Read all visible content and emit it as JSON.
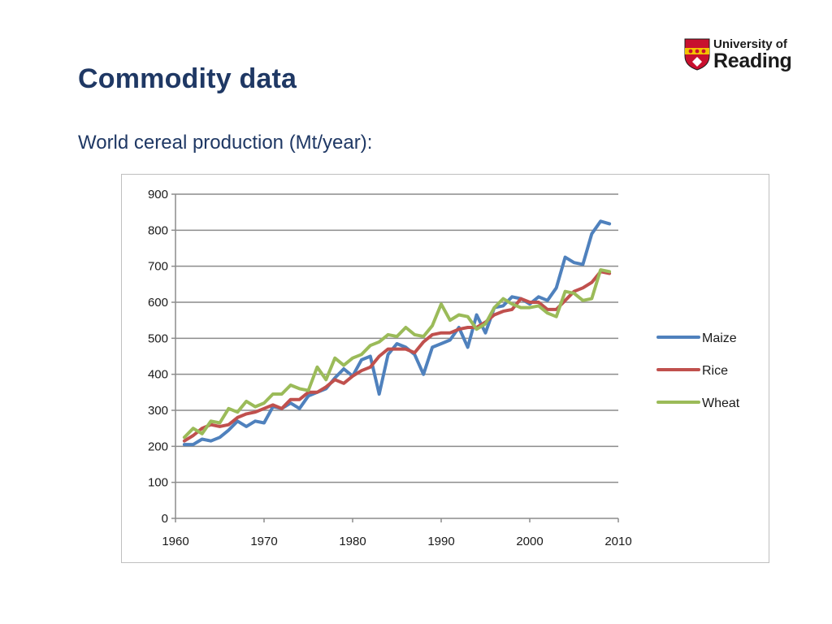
{
  "slide": {
    "title": "Commodity data",
    "subtitle": "World cereal production (Mt/year):"
  },
  "logo": {
    "line1": "University of",
    "line2": "Reading",
    "shield_colors": {
      "red": "#c8102e",
      "gold": "#f2c200",
      "white": "#ffffff"
    }
  },
  "chart_data": {
    "type": "line",
    "title": "",
    "xlabel": "",
    "ylabel": "",
    "xlim": [
      1960,
      2010
    ],
    "ylim": [
      0,
      900
    ],
    "x_ticks": [
      1960,
      1970,
      1980,
      1990,
      2000,
      2010
    ],
    "y_ticks": [
      0,
      100,
      200,
      300,
      400,
      500,
      600,
      700,
      800,
      900
    ],
    "grid": "horizontal",
    "legend_position": "right",
    "x": [
      1961,
      1962,
      1963,
      1964,
      1965,
      1966,
      1967,
      1968,
      1969,
      1970,
      1971,
      1972,
      1973,
      1974,
      1975,
      1976,
      1977,
      1978,
      1979,
      1980,
      1981,
      1982,
      1983,
      1984,
      1985,
      1986,
      1987,
      1988,
      1989,
      1990,
      1991,
      1992,
      1993,
      1994,
      1995,
      1996,
      1997,
      1998,
      1999,
      2000,
      2001,
      2002,
      2003,
      2004,
      2005,
      2006,
      2007,
      2008,
      2009
    ],
    "series": [
      {
        "name": "Maize",
        "color": "#4f81bd",
        "values": [
          205,
          205,
          220,
          215,
          225,
          245,
          270,
          255,
          270,
          265,
          310,
          305,
          320,
          305,
          340,
          350,
          360,
          390,
          415,
          395,
          440,
          450,
          345,
          455,
          485,
          475,
          455,
          400,
          475,
          485,
          495,
          530,
          475,
          565,
          515,
          585,
          590,
          615,
          610,
          595,
          615,
          605,
          640,
          725,
          710,
          705,
          790,
          825,
          818
        ]
      },
      {
        "name": "Rice",
        "color": "#c0504d",
        "values": [
          215,
          230,
          250,
          260,
          255,
          260,
          280,
          290,
          295,
          305,
          315,
          305,
          330,
          330,
          350,
          350,
          365,
          385,
          375,
          395,
          410,
          420,
          450,
          470,
          470,
          470,
          460,
          490,
          510,
          515,
          515,
          525,
          530,
          530,
          545,
          565,
          575,
          580,
          610,
          600,
          600,
          580,
          580,
          605,
          630,
          640,
          655,
          685,
          680
        ]
      },
      {
        "name": "Wheat",
        "color": "#9bbb59",
        "values": [
          225,
          250,
          235,
          270,
          265,
          305,
          295,
          325,
          310,
          320,
          345,
          345,
          370,
          360,
          355,
          420,
          385,
          445,
          425,
          445,
          455,
          480,
          490,
          510,
          505,
          530,
          510,
          505,
          535,
          595,
          550,
          565,
          560,
          525,
          540,
          585,
          610,
          595,
          585,
          585,
          590,
          570,
          560,
          630,
          625,
          605,
          610,
          690,
          685
        ]
      }
    ]
  }
}
